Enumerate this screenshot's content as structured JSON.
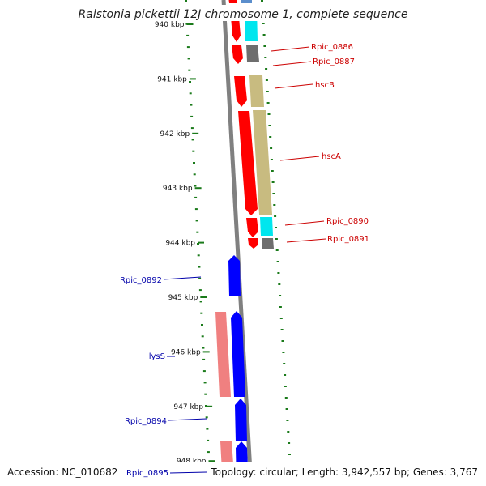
{
  "title": "Ralstonia pickettii 12J chromosome 1, complete sequence",
  "footer": {
    "accession": "Accession: NC_010682",
    "summary": "Topology: circular; Length: 3,942,557 bp; Genes: 3,767"
  },
  "ruler_ticks": [
    "940 kbp",
    "941 kbp",
    "942 kbp",
    "943 kbp",
    "944 kbp",
    "945 kbp",
    "946 kbp",
    "947 kbp",
    "948 kbp"
  ],
  "colors": {
    "cds": "#ff0000",
    "cds_reverse": "#0000ff",
    "cds_reverse_light": "#f08080",
    "cyan": "#00e6ee",
    "grey": "#6e6e6e",
    "olive": "#c8bb80",
    "steel": "#5b8ecc",
    "backbone": "#808080",
    "tick": "#1a7a1a",
    "label_right": "#cc0000",
    "label_left": "#0000aa"
  },
  "labels_right": [
    "Rpic_0886",
    "Rpic_0887",
    "hscB",
    "hscA",
    "Rpic_0890",
    "Rpic_0891"
  ],
  "labels_left": [
    "Rpic_0892",
    "lysS",
    "Rpic_0894",
    "Rpic_0895"
  ]
}
